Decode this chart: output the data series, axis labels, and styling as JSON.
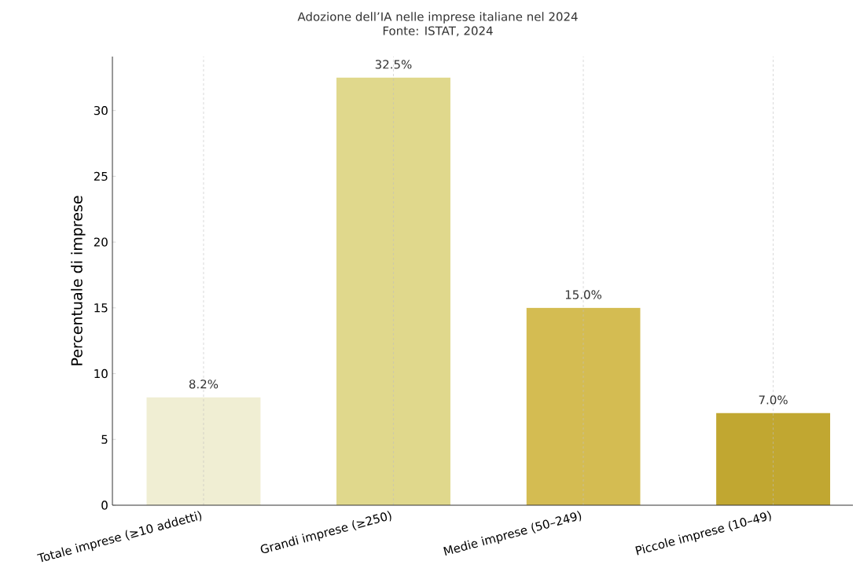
{
  "chart_data": {
    "type": "bar",
    "title": "Adozione dell’IA nelle imprese italiane nel 2024",
    "subtitle": "Fonte: ISTAT, 2024",
    "ylabel": "Percentuale di imprese",
    "categories": [
      "Totale imprese (≥10 addetti)",
      "Grandi imprese (≥250)",
      "Medie imprese (50–249)",
      "Piccole imprese (10–49)"
    ],
    "values": [
      8.2,
      32.5,
      15.0,
      7.0
    ],
    "colors": [
      "#f0eed3",
      "#e0d88c",
      "#d4bc52",
      "#c1a731"
    ],
    "value_labels": [
      "8.2%",
      "32.5%",
      "15.0%",
      "7.0%"
    ],
    "ylim": [
      0,
      34.1
    ],
    "yticks": [
      0,
      5,
      10,
      15,
      20,
      25,
      30
    ],
    "grid": "x"
  }
}
